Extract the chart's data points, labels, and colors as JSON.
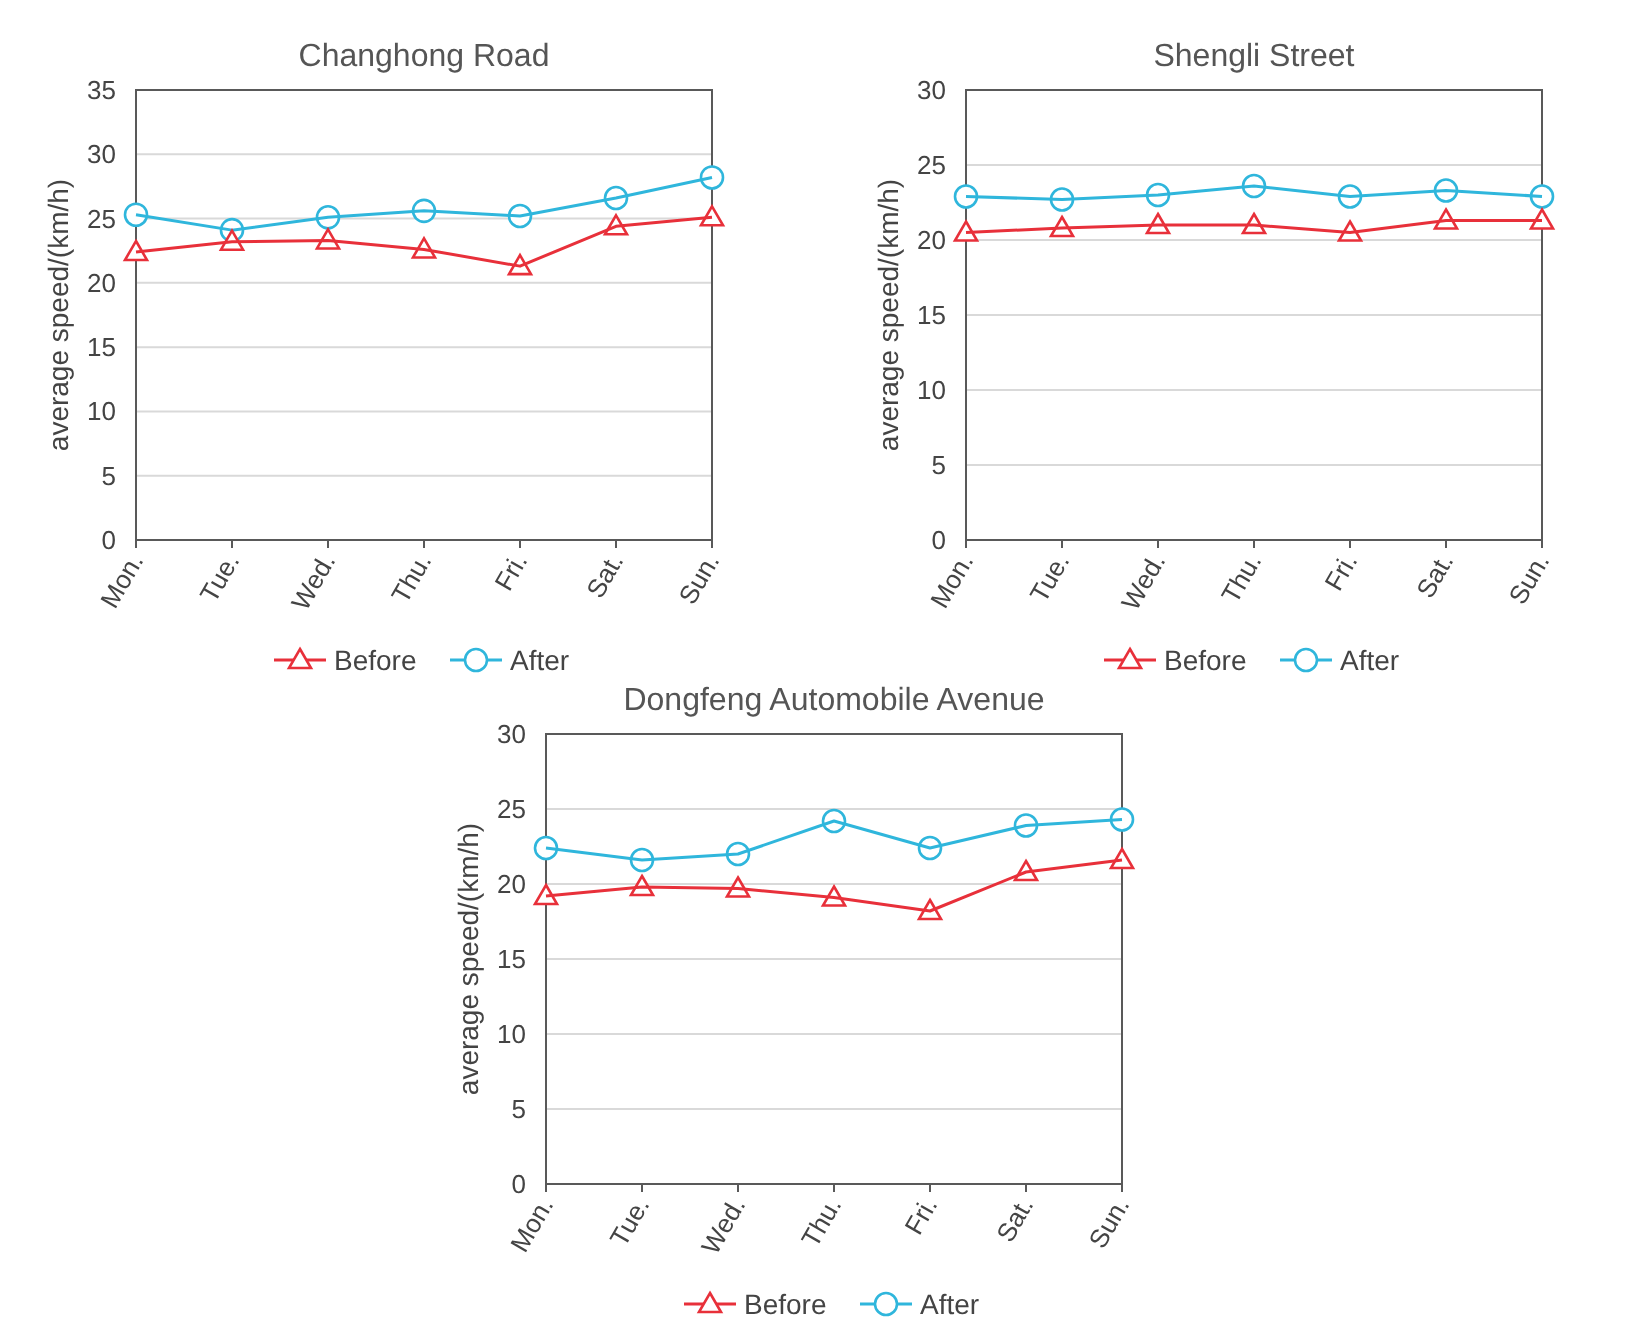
{
  "chart_data": [
    {
      "type": "line",
      "title": "Changhong Road",
      "ylabel": "average speed/(km/h)",
      "categories": [
        "Mon.",
        "Tue.",
        "Wed.",
        "Thu.",
        "Fri.",
        "Sat.",
        "Sun."
      ],
      "ylim": [
        0,
        35
      ],
      "yticks": [
        0,
        5,
        10,
        15,
        20,
        25,
        30,
        35
      ],
      "grid": "y",
      "legend": "bottom",
      "series": [
        {
          "name": "Before",
          "color": "#e8303a",
          "marker": "triangle",
          "values": [
            22.4,
            23.2,
            23.3,
            22.6,
            21.3,
            24.4,
            25.1
          ]
        },
        {
          "name": "After",
          "color": "#2fb6dc",
          "marker": "circle",
          "values": [
            25.3,
            24.1,
            25.1,
            25.6,
            25.2,
            26.6,
            28.2
          ]
        }
      ]
    },
    {
      "type": "line",
      "title": "Shengli Street",
      "ylabel": "average speed/(km/h)",
      "categories": [
        "Mon.",
        "Tue.",
        "Wed.",
        "Thu.",
        "Fri.",
        "Sat.",
        "Sun."
      ],
      "ylim": [
        0,
        30
      ],
      "yticks": [
        0,
        5,
        10,
        15,
        20,
        25,
        30
      ],
      "grid": "y",
      "legend": "bottom",
      "series": [
        {
          "name": "Before",
          "color": "#e8303a",
          "marker": "triangle",
          "values": [
            20.5,
            20.8,
            21.0,
            21.0,
            20.5,
            21.3,
            21.3
          ]
        },
        {
          "name": "After",
          "color": "#2fb6dc",
          "marker": "circle",
          "values": [
            22.9,
            22.7,
            23.0,
            23.6,
            22.9,
            23.3,
            22.9
          ]
        }
      ]
    },
    {
      "type": "line",
      "title": "Dongfeng Automobile Avenue",
      "ylabel": "average speed/(km/h)",
      "categories": [
        "Mon.",
        "Tue.",
        "Wed.",
        "Thu.",
        "Fri.",
        "Sat.",
        "Sun."
      ],
      "ylim": [
        0,
        30
      ],
      "yticks": [
        0,
        5,
        10,
        15,
        20,
        25,
        30
      ],
      "grid": "y",
      "legend": "bottom",
      "series": [
        {
          "name": "Before",
          "color": "#e8303a",
          "marker": "triangle",
          "values": [
            19.2,
            19.8,
            19.7,
            19.1,
            18.2,
            20.8,
            21.6
          ]
        },
        {
          "name": "After",
          "color": "#2fb6dc",
          "marker": "circle",
          "values": [
            22.4,
            21.6,
            22.0,
            24.2,
            22.4,
            23.9,
            24.3
          ]
        }
      ]
    }
  ]
}
